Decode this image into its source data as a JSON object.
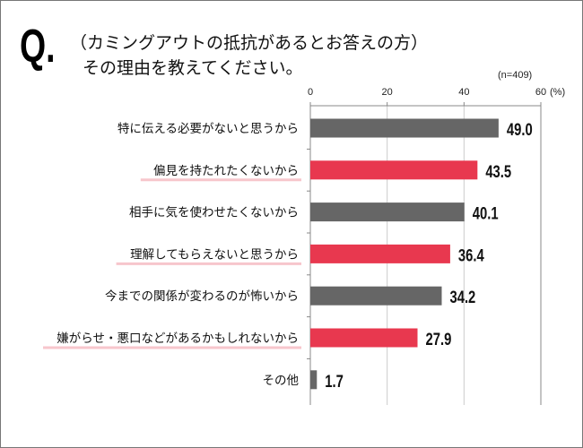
{
  "question_mark": "Q.",
  "title_line1": "（カミングアウトの抵抗があるとお答えの方）",
  "title_line2": "その理由を教えてください。",
  "sample_size": "(n=409)",
  "colors": {
    "gray": "#666666",
    "highlight": "#e8384f",
    "underline": "#f7c6cc"
  },
  "chart_data": {
    "type": "bar",
    "orientation": "horizontal",
    "unit": "(%)",
    "xlim": [
      0,
      60
    ],
    "ticks": [
      0,
      20,
      40,
      60
    ],
    "grid": true,
    "categories": [
      "特に伝える必要がないと思うから",
      "偏見を持たれたくないから",
      "相手に気を使わせたくないから",
      "理解してもらえないと思うから",
      "今までの関係が変わるのが怖いから",
      "嫌がらせ・悪口などがあるかもしれないから",
      "その他"
    ],
    "values": [
      49.0,
      43.5,
      40.1,
      36.4,
      34.2,
      27.9,
      1.7
    ],
    "labels": [
      "49.0",
      "43.5",
      "40.1",
      "36.4",
      "34.2",
      "27.9",
      "1.7"
    ],
    "highlighted": [
      false,
      true,
      false,
      true,
      false,
      true,
      false
    ]
  }
}
